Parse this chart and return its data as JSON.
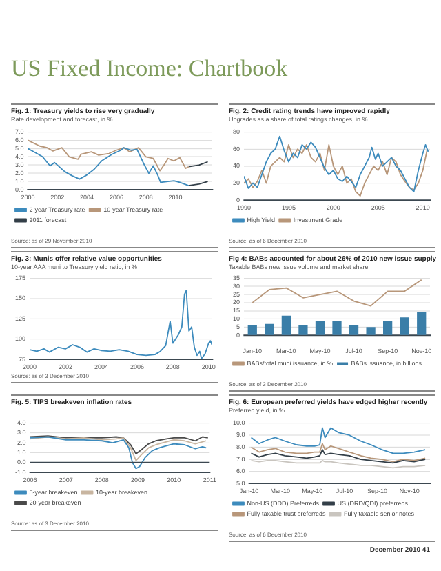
{
  "chart_data": [
    {
      "type": "line",
      "title": "Fig. 1: Treasury yields to rise very gradually",
      "subtitle": "Rate development and forecast, in %",
      "annotations": [
        "US Fixed Income: Chartbook",
        "Source: as of 29 November 2010"
      ],
      "xlim": [
        2000,
        2012.5
      ],
      "xticks": [
        2000,
        2002,
        2004,
        2006,
        2008,
        2010
      ],
      "ylim": [
        0,
        7
      ],
      "yticks": [
        {
          "value": 0,
          "label": "0.0"
        },
        {
          "value": 1,
          "label": "1.0"
        },
        {
          "value": 2,
          "label": "2.0"
        },
        {
          "value": 3,
          "label": "3.0"
        },
        {
          "value": 4,
          "label": "4.0"
        },
        {
          "value": 5,
          "label": "5.0"
        },
        {
          "value": 6,
          "label": "6.0"
        },
        {
          "value": 7,
          "label": "7.0"
        }
      ],
      "grid": "y",
      "legend": "bottom",
      "marker": "none",
      "line_style": "solid",
      "series": [
        {
          "name": "2-year Treasury rate",
          "color": "#3d8bbd",
          "x": [
            2000,
            2000.5,
            2001,
            2001.5,
            2001.8,
            2002.5,
            2003,
            2003.5,
            2004,
            2004.5,
            2005,
            2005.7,
            2006.3,
            2006.5,
            2007,
            2007.4,
            2007.9,
            2008.2,
            2008.5,
            2008.8,
            2009,
            2009.5,
            2009.9,
            2010.3,
            2010.9
          ],
          "values": [
            5.0,
            4.5,
            4.0,
            2.9,
            3.3,
            2.2,
            1.7,
            1.3,
            1.8,
            2.5,
            3.5,
            4.3,
            4.8,
            5.1,
            4.8,
            4.9,
            3.0,
            2.0,
            2.9,
            1.8,
            0.9,
            1.0,
            1.1,
            0.9,
            0.5
          ]
        },
        {
          "name": "10-year Treasury rate",
          "color": "#b8977a",
          "x": [
            2000,
            2000.8,
            2001.3,
            2001.7,
            2002.3,
            2002.8,
            2003.4,
            2003.6,
            2004.3,
            2004.8,
            2005.5,
            2006,
            2006.5,
            2006.9,
            2007.5,
            2008,
            2008.5,
            2008.95,
            2009.3,
            2009.5,
            2009.9,
            2010.3,
            2010.7,
            2010.9
          ],
          "values": [
            6.0,
            5.3,
            5.1,
            4.7,
            5.1,
            4.0,
            3.7,
            4.3,
            4.6,
            4.2,
            4.4,
            4.8,
            5.1,
            4.6,
            5.1,
            4.0,
            3.8,
            2.3,
            3.2,
            3.8,
            3.5,
            3.9,
            2.6,
            2.8
          ]
        },
        {
          "name": "2011 forecast",
          "color": "#333f48",
          "x": [
            2010.9,
            2011.6,
            2012.2,
            2011.6,
            2010.9,
            2011.6,
            2012.2
          ],
          "values": [
            0.5,
            0.7,
            1.0,
            null,
            2.8,
            3.0,
            3.4
          ]
        }
      ]
    },
    {
      "type": "line",
      "title": "Fig. 2: Credit rating trends have improved rapidly",
      "subtitle": "Upgrades as a share of total ratings changes, in %",
      "annotations": [
        "Source: as of 6 December 2010"
      ],
      "xlim": [
        1990,
        2010.8
      ],
      "xticks": [
        1990,
        1995,
        2000,
        2005,
        2010
      ],
      "ylim": [
        0,
        80
      ],
      "yticks": [
        0,
        20,
        40,
        60,
        80
      ],
      "grid": "y",
      "legend": "bottom",
      "marker": "none",
      "line_style": "solid",
      "series": [
        {
          "name": "High Yield",
          "color": "#3d8bbd",
          "x": [
            1990,
            1990.5,
            1991,
            1991.5,
            1992,
            1992.5,
            1993,
            1993.5,
            1994,
            1994.5,
            1995,
            1995.5,
            1996,
            1996.5,
            1997,
            1997.5,
            1998,
            1998.5,
            1999,
            1999.5,
            2000,
            2000.5,
            2001,
            2001.5,
            2002,
            2002.5,
            2003,
            2003.5,
            2004,
            2004.3,
            2004.7,
            2005,
            2005.5,
            2006,
            2006.5,
            2007,
            2007.5,
            2008,
            2008.5,
            2009,
            2009.5,
            2010,
            2010.3,
            2010.6
          ],
          "values": [
            28,
            14,
            20,
            15,
            30,
            45,
            55,
            60,
            75,
            58,
            45,
            55,
            50,
            65,
            60,
            68,
            62,
            50,
            38,
            30,
            35,
            25,
            22,
            28,
            22,
            15,
            30,
            40,
            50,
            62,
            48,
            55,
            40,
            45,
            50,
            40,
            35,
            25,
            15,
            10,
            35,
            55,
            65,
            57
          ]
        },
        {
          "name": "Investment Grade",
          "color": "#b8977a",
          "x": [
            1990,
            1990.5,
            1991,
            1991.5,
            1992,
            1992.5,
            1993,
            1993.5,
            1994,
            1994.5,
            1995,
            1995.5,
            1996,
            1996.5,
            1997,
            1997.5,
            1998,
            1998.5,
            1999,
            1999.5,
            2000,
            2000.5,
            2001,
            2001.5,
            2002,
            2002.5,
            2003,
            2003.5,
            2004,
            2004.5,
            2005,
            2005.5,
            2006,
            2006.5,
            2007,
            2007.5,
            2008,
            2008.5,
            2009,
            2009.5,
            2010,
            2010.5
          ],
          "values": [
            20,
            25,
            15,
            22,
            35,
            20,
            40,
            45,
            50,
            45,
            65,
            50,
            60,
            55,
            65,
            50,
            45,
            55,
            35,
            65,
            40,
            30,
            40,
            20,
            25,
            10,
            5,
            20,
            30,
            40,
            35,
            45,
            30,
            50,
            45,
            30,
            22,
            15,
            12,
            20,
            35,
            60
          ]
        }
      ]
    },
    {
      "type": "line",
      "title": "Fig. 3: Munis offer relative value opportunities",
      "subtitle": "10-year AAA muni to Treasury yield ratio, in %",
      "annotations": [
        "Source: as of 3 December 2010"
      ],
      "xlim": [
        2000,
        2010.2
      ],
      "xticks": [
        2000,
        2002,
        2004,
        2006,
        2008,
        2010
      ],
      "ylim": [
        75,
        175
      ],
      "yticks": [
        75,
        100,
        125,
        150,
        175
      ],
      "grid": "y",
      "marker": "none",
      "line_style": "solid",
      "series": [
        {
          "color": "#3d8bbd",
          "x": [
            2000,
            2000.4,
            2000.8,
            2001.1,
            2001.6,
            2002,
            2002.4,
            2002.8,
            2003.2,
            2003.6,
            2004,
            2004.5,
            2005,
            2005.5,
            2006,
            2006.5,
            2007,
            2007.3,
            2007.6,
            2007.85,
            2008,
            2008.3,
            2008.5,
            2008.65,
            2008.75,
            2008.9,
            2009.05,
            2009.2,
            2009.35,
            2009.5,
            2009.6,
            2009.8,
            2010,
            2010.1,
            2010.2
          ],
          "values": [
            87,
            85,
            88,
            84,
            90,
            88,
            93,
            90,
            84,
            88,
            86,
            85,
            87,
            85,
            81,
            80,
            81,
            85,
            92,
            122,
            95,
            105,
            115,
            155,
            160,
            110,
            115,
            90,
            80,
            85,
            76,
            82,
            95,
            98,
            92
          ]
        }
      ]
    },
    {
      "type": "bar",
      "title": "Fig 4: BABs accounted for about 26% of 2010 new issue supply",
      "subtitle": "Taxable BABs new issue volume and market share",
      "annotations": [
        "Source: as of 3 December 2010"
      ],
      "categories": [
        "Jan-10",
        null,
        "Mar-10",
        null,
        "May-10",
        null,
        "Jul-10",
        null,
        "Sep-10",
        null,
        "Nov-10"
      ],
      "ylim": [
        0,
        35
      ],
      "yticks": [
        0,
        5,
        10,
        15,
        20,
        25,
        30,
        35
      ],
      "grid": "y",
      "legend": "bottom",
      "marker": "none",
      "line_style": "solid",
      "series": [
        {
          "name": "BABs issuance, in billions",
          "type": "bar",
          "color": "#3a7ea8",
          "values": [
            6,
            7,
            12,
            6,
            9,
            9,
            6,
            5,
            9,
            11,
            14
          ]
        },
        {
          "name": "BABs/total muni issuance, in %",
          "type": "line",
          "color": "#b8977a",
          "values": [
            20,
            28,
            29,
            23,
            25,
            27,
            21,
            18,
            27,
            27,
            34
          ]
        }
      ]
    },
    {
      "type": "line",
      "title": "Fig. 5: TIPS breakeven inflation rates",
      "annotations": [
        "Source: as of 3 December 2010"
      ],
      "xlim": [
        2006,
        2011
      ],
      "xticks": [
        2006,
        2007,
        2008,
        2009,
        2010,
        2011
      ],
      "ylim": [
        -1,
        4
      ],
      "yticks": [
        {
          "value": -1,
          "label": "-1.0"
        },
        {
          "value": 0,
          "label": "0.0"
        },
        {
          "value": 1,
          "label": "1.0"
        },
        {
          "value": 2,
          "label": "2.0"
        },
        {
          "value": 3,
          "label": "3.0"
        },
        {
          "value": 4,
          "label": "4.0"
        }
      ],
      "grid": "y",
      "legend": "bottom",
      "marker": "none",
      "line_style": "solid",
      "ref_lines": [
        {
          "axis": "y",
          "value": 0,
          "color": "#3b4750"
        }
      ],
      "series": [
        {
          "name": "5-year breakeven",
          "color": "#3d8bbd",
          "x": [
            2006,
            2006.5,
            2007,
            2007.5,
            2008,
            2008.3,
            2008.6,
            2008.75,
            2008.85,
            2008.95,
            2009.05,
            2009.2,
            2009.4,
            2009.6,
            2009.8,
            2010,
            2010.3,
            2010.6,
            2010.8,
            2010.9
          ],
          "values": [
            2.5,
            2.6,
            2.3,
            2.3,
            2.2,
            2.0,
            2.3,
            1.5,
            0.0,
            -0.6,
            -0.4,
            0.5,
            1.2,
            1.5,
            1.7,
            1.9,
            1.8,
            1.4,
            1.6,
            1.5
          ]
        },
        {
          "name": "10-year breakeven",
          "color": "#c8b5a0",
          "x": [
            2006,
            2006.5,
            2007,
            2007.5,
            2008,
            2008.4,
            2008.6,
            2008.8,
            2008.95,
            2009.1,
            2009.3,
            2009.5,
            2009.8,
            2010,
            2010.3,
            2010.6,
            2010.9
          ],
          "values": [
            2.4,
            2.6,
            2.4,
            2.5,
            2.3,
            2.4,
            2.5,
            1.5,
            0.2,
            0.8,
            1.5,
            1.8,
            2.1,
            2.3,
            2.2,
            1.9,
            2.2
          ]
        },
        {
          "name": "20-year breakeven",
          "color": "#4a4a4a",
          "x": [
            2006,
            2006.5,
            2007,
            2007.5,
            2008,
            2008.4,
            2008.6,
            2008.8,
            2008.95,
            2009.1,
            2009.3,
            2009.5,
            2009.8,
            2010,
            2010.3,
            2010.6,
            2010.8,
            2010.95
          ],
          "values": [
            2.6,
            2.7,
            2.5,
            2.5,
            2.5,
            2.6,
            2.5,
            1.8,
            0.9,
            1.3,
            1.9,
            2.2,
            2.4,
            2.5,
            2.5,
            2.2,
            2.6,
            2.5
          ]
        }
      ]
    },
    {
      "type": "line",
      "title": "Fig. 6: European preferred yields have edged higher recently",
      "subtitle": "Preferred yield, in %",
      "annotations": [
        "Source: as of 6 December 2010",
        "December 2010   41"
      ],
      "xlim": [
        "2010-01-01",
        "2010-12-10"
      ],
      "xticks": [
        {
          "value": "2010-01-01",
          "label": "Jan-10"
        },
        {
          "value": "2010-03-01",
          "label": "Mar-10"
        },
        {
          "value": "2010-05-01",
          "label": "May-10"
        },
        {
          "value": "2010-07-01",
          "label": "Jul-10"
        },
        {
          "value": "2010-09-01",
          "label": "Sep-10"
        },
        {
          "value": "2010-11-01",
          "label": "Nov-10"
        }
      ],
      "ylim": [
        5,
        10
      ],
      "yticks": [
        {
          "value": 5,
          "label": "5.0"
        },
        {
          "value": 6,
          "label": "6.0"
        },
        {
          "value": 7,
          "label": "7.0"
        },
        {
          "value": 8,
          "label": "8.0"
        },
        {
          "value": 9,
          "label": "9.0"
        },
        {
          "value": 10,
          "label": "10.0"
        }
      ],
      "grid": "y",
      "legend": "bottom",
      "marker": "none",
      "line_style": "solid",
      "x": [
        "2010-01-05",
        "2010-01-20",
        "2010-02-05",
        "2010-02-20",
        "2010-03-10",
        "2010-04-01",
        "2010-04-20",
        "2010-05-05",
        "2010-05-15",
        "2010-05-20",
        "2010-05-25",
        "2010-06-05",
        "2010-06-20",
        "2010-07-10",
        "2010-08-01",
        "2010-08-20",
        "2010-09-10",
        "2010-10-01",
        "2010-10-20",
        "2010-11-10",
        "2010-12-01"
      ],
      "series": [
        {
          "name": "Non-US (DDD) Preferreds",
          "color": "#3d8bbd",
          "values": [
            8.8,
            8.3,
            8.6,
            8.8,
            8.5,
            8.2,
            8.1,
            8.1,
            8.2,
            9.6,
            8.8,
            9.6,
            9.2,
            9.0,
            8.5,
            8.2,
            7.8,
            7.5,
            7.5,
            7.6,
            7.8
          ]
        },
        {
          "name": "US (DRD/QDI) preferreds",
          "color": "#333f48",
          "values": [
            7.5,
            7.2,
            7.4,
            7.5,
            7.3,
            7.2,
            7.1,
            7.2,
            7.3,
            7.8,
            7.4,
            7.5,
            7.4,
            7.3,
            7.0,
            6.9,
            6.8,
            6.7,
            6.9,
            6.8,
            7.0
          ]
        },
        {
          "name": "Fully taxable trust preferreds",
          "color": "#b8977a",
          "values": [
            8.0,
            7.6,
            7.8,
            7.9,
            7.6,
            7.5,
            7.5,
            7.6,
            7.6,
            8.3,
            7.8,
            8.1,
            7.9,
            7.6,
            7.3,
            7.1,
            7.0,
            6.8,
            7.0,
            6.9,
            7.1
          ]
        },
        {
          "name": "Fully taxable senior notes",
          "color": "#c9c5bf",
          "values": [
            6.9,
            6.8,
            6.9,
            6.9,
            6.8,
            6.7,
            6.7,
            6.7,
            6.7,
            6.9,
            6.8,
            6.8,
            6.7,
            6.6,
            6.5,
            6.5,
            6.4,
            6.3,
            6.4,
            6.4,
            6.5
          ]
        }
      ]
    }
  ]
}
